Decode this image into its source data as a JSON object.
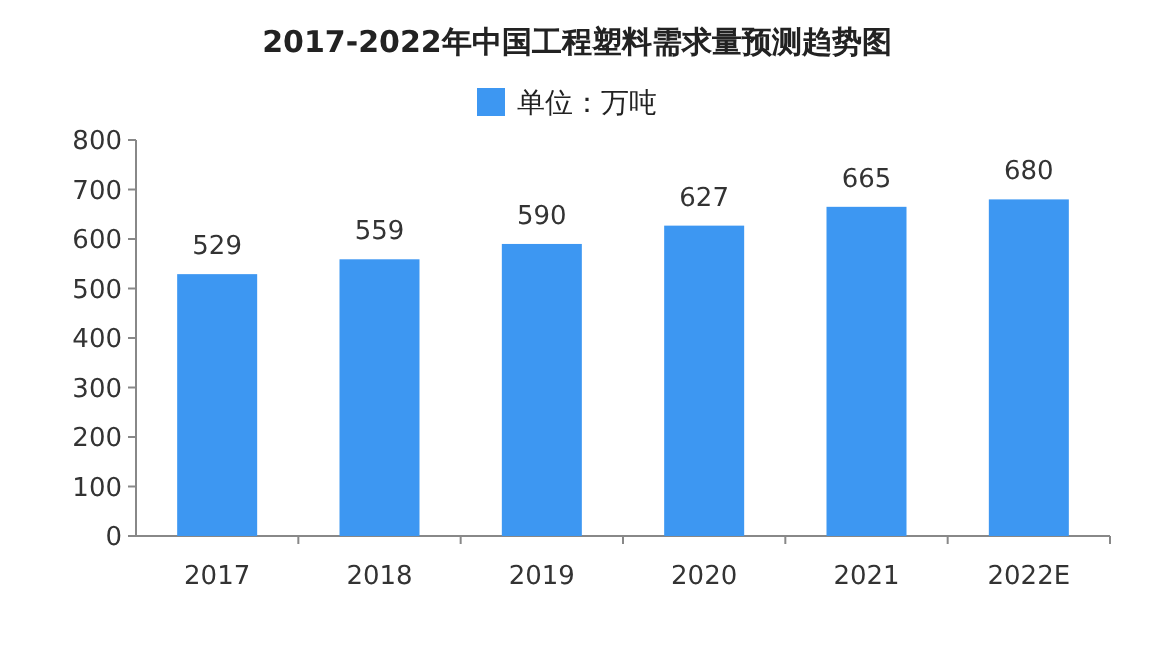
{
  "chart_data": {
    "type": "bar",
    "title": "2017-2022年中国工程塑料需求量预测趋势图",
    "categories": [
      "2017",
      "2018",
      "2019",
      "2020",
      "2021",
      "2022E"
    ],
    "series": [
      {
        "name": "单位：万吨",
        "color": "#3d97f2",
        "values": [
          529,
          559,
          590,
          627,
          665,
          680
        ]
      }
    ],
    "ylim": [
      0,
      800
    ],
    "yticks": [
      0,
      100,
      200,
      300,
      400,
      500,
      600,
      700,
      800
    ],
    "data_labels": true,
    "legend": "top"
  }
}
